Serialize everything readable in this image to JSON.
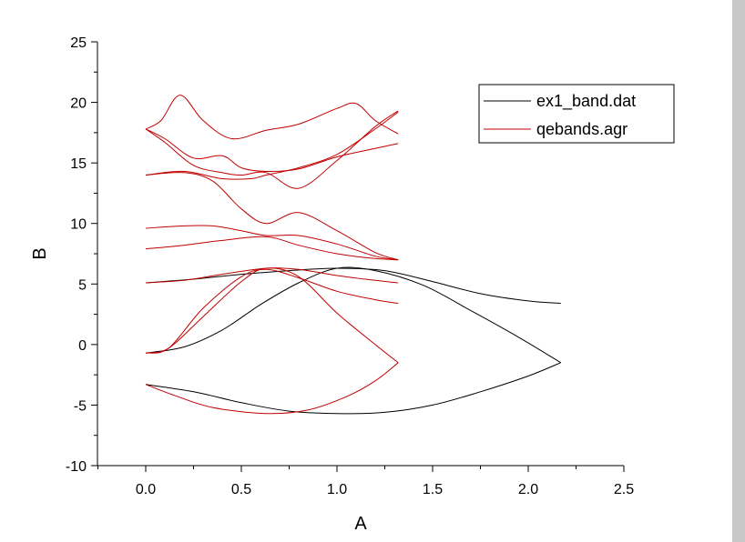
{
  "chart_data": {
    "type": "line",
    "xlabel": "A",
    "ylabel": "B",
    "xlim": [
      -0.25,
      2.5
    ],
    "ylim": [
      -10,
      25
    ],
    "xticks": [
      "0.0",
      "0.5",
      "1.0",
      "1.5",
      "2.0",
      "2.5"
    ],
    "yticks": [
      "-10",
      "-5",
      "0",
      "5",
      "10",
      "15",
      "20",
      "25"
    ],
    "xtick_values": [
      0,
      0.5,
      1.0,
      1.5,
      2.0,
      2.5
    ],
    "ytick_values": [
      -10,
      -5,
      0,
      5,
      10,
      15,
      20,
      25
    ],
    "legend_position": "top-right",
    "grid": false,
    "series": [
      {
        "name": "ex1_band.dat",
        "color": "#000000",
        "bands": [
          [
            [
              0,
              -3.3
            ],
            [
              0.25,
              -3.9
            ],
            [
              0.5,
              -4.8
            ],
            [
              0.75,
              -5.5
            ],
            [
              1.0,
              -5.7
            ],
            [
              1.25,
              -5.6
            ],
            [
              1.5,
              -5.0
            ],
            [
              1.75,
              -3.9
            ],
            [
              2.0,
              -2.6
            ],
            [
              2.17,
              -1.5
            ]
          ],
          [
            [
              0,
              -0.7
            ],
            [
              0.2,
              -0.2
            ],
            [
              0.4,
              1.2
            ],
            [
              0.6,
              3.3
            ],
            [
              0.8,
              5.1
            ],
            [
              1.0,
              6.3
            ],
            [
              1.2,
              6.1
            ],
            [
              1.45,
              4.9
            ],
            [
              1.7,
              2.8
            ],
            [
              1.95,
              0.6
            ],
            [
              2.17,
              -1.5
            ]
          ],
          [
            [
              0,
              5.1
            ],
            [
              0.25,
              5.4
            ],
            [
              0.5,
              5.8
            ],
            [
              0.75,
              6.1
            ],
            [
              1.0,
              6.3
            ],
            [
              1.25,
              6.1
            ],
            [
              1.5,
              5.2
            ],
            [
              1.75,
              4.2
            ],
            [
              2.0,
              3.6
            ],
            [
              2.17,
              3.4
            ]
          ]
        ]
      },
      {
        "name": "qebands.agr",
        "color": "#c00000",
        "bands": [
          [
            [
              0,
              -3.3
            ],
            [
              0.15,
              -4.2
            ],
            [
              0.35,
              -5.2
            ],
            [
              0.63,
              -5.7
            ],
            [
              0.85,
              -5.4
            ],
            [
              1.05,
              -4.3
            ],
            [
              1.2,
              -3.0
            ],
            [
              1.32,
              -1.5
            ]
          ],
          [
            [
              0,
              -0.7
            ],
            [
              0.12,
              -0.3
            ],
            [
              0.3,
              2.3
            ],
            [
              0.5,
              5.2
            ],
            [
              0.63,
              6.3
            ],
            [
              0.8,
              5.6
            ],
            [
              1.0,
              2.6
            ],
            [
              1.2,
              0.0
            ],
            [
              1.32,
              -1.5
            ]
          ],
          [
            [
              0,
              -0.7
            ],
            [
              0.12,
              -0.3
            ],
            [
              0.3,
              3.0
            ],
            [
              0.5,
              5.6
            ],
            [
              0.63,
              6.2
            ],
            [
              0.8,
              5.5
            ],
            [
              1.0,
              4.4
            ],
            [
              1.2,
              3.7
            ],
            [
              1.32,
              3.4
            ]
          ],
          [
            [
              0,
              5.1
            ],
            [
              0.2,
              5.3
            ],
            [
              0.4,
              5.8
            ],
            [
              0.63,
              6.3
            ],
            [
              0.8,
              6.2
            ],
            [
              1.0,
              5.7
            ],
            [
              1.2,
              5.3
            ],
            [
              1.32,
              5.1
            ]
          ],
          [
            [
              0,
              7.9
            ],
            [
              0.2,
              8.2
            ],
            [
              0.4,
              8.6
            ],
            [
              0.63,
              8.9
            ],
            [
              0.8,
              8.2
            ],
            [
              1.0,
              7.5
            ],
            [
              1.2,
              7.1
            ],
            [
              1.32,
              7.0
            ]
          ],
          [
            [
              0,
              9.6
            ],
            [
              0.2,
              9.8
            ],
            [
              0.35,
              9.8
            ],
            [
              0.5,
              9.4
            ],
            [
              0.63,
              9.0
            ],
            [
              0.8,
              9.0
            ],
            [
              1.0,
              8.3
            ],
            [
              1.2,
              7.3
            ],
            [
              1.32,
              7.0
            ]
          ],
          [
            [
              0,
              14.0
            ],
            [
              0.2,
              14.2
            ],
            [
              0.35,
              13.5
            ],
            [
              0.5,
              11.2
            ],
            [
              0.63,
              10.0
            ],
            [
              0.8,
              10.9
            ],
            [
              1.0,
              9.4
            ],
            [
              1.2,
              7.6
            ],
            [
              1.32,
              7.0
            ]
          ],
          [
            [
              0,
              17.8
            ],
            [
              0.1,
              17.0
            ],
            [
              0.25,
              15.4
            ],
            [
              0.4,
              15.6
            ],
            [
              0.5,
              14.6
            ],
            [
              0.63,
              14.3
            ],
            [
              0.8,
              14.5
            ],
            [
              1.0,
              15.5
            ],
            [
              1.2,
              16.2
            ],
            [
              1.32,
              16.6
            ]
          ],
          [
            [
              0,
              17.8
            ],
            [
              0.1,
              16.7
            ],
            [
              0.25,
              14.8
            ],
            [
              0.4,
              14.2
            ],
            [
              0.5,
              14.0
            ],
            [
              0.63,
              14.2
            ],
            [
              0.8,
              12.9
            ],
            [
              1.0,
              15.2
            ],
            [
              1.2,
              18.0
            ],
            [
              1.32,
              19.3
            ]
          ],
          [
            [
              0,
              17.8
            ],
            [
              0.08,
              18.5
            ],
            [
              0.18,
              20.6
            ],
            [
              0.3,
              18.5
            ],
            [
              0.45,
              17.0
            ],
            [
              0.63,
              17.7
            ],
            [
              0.8,
              18.2
            ],
            [
              1.0,
              19.5
            ],
            [
              1.1,
              19.9
            ],
            [
              1.2,
              18.5
            ],
            [
              1.32,
              17.4
            ]
          ],
          [
            [
              0,
              14.0
            ],
            [
              0.2,
              14.3
            ],
            [
              0.4,
              13.7
            ],
            [
              0.55,
              13.7
            ],
            [
              0.63,
              14.0
            ],
            [
              0.8,
              14.6
            ],
            [
              1.0,
              15.7
            ],
            [
              1.2,
              17.8
            ],
            [
              1.32,
              19.2
            ]
          ]
        ]
      }
    ]
  }
}
